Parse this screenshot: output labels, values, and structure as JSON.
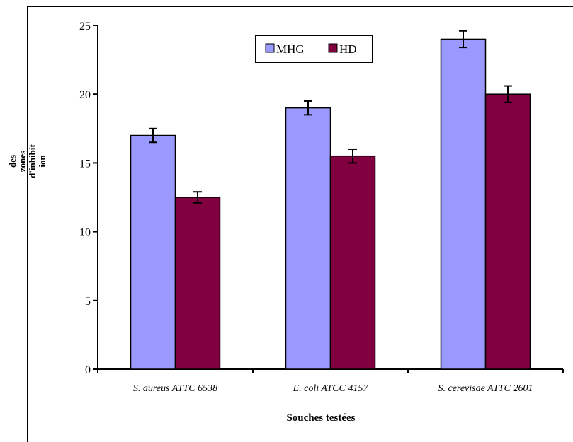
{
  "chart_data": {
    "type": "bar",
    "categories": [
      "S. aureus ATTC 6538",
      "E. coli ATCC 4157",
      "S. cerevisae ATTC 2601"
    ],
    "series": [
      {
        "name": "MHG",
        "color": "#9999ff",
        "values": [
          17,
          19,
          24
        ],
        "errors": [
          0.5,
          0.5,
          0.6
        ]
      },
      {
        "name": "HD",
        "color": "#800040",
        "values": [
          12.5,
          15.5,
          20
        ],
        "errors": [
          0.4,
          0.5,
          0.6
        ]
      }
    ],
    "xlabel": "Souches testées",
    "ylabel_lines": [
      "des",
      "zones",
      "d'inhibit",
      "ion"
    ],
    "ylim": [
      0,
      25
    ],
    "yticks": [
      0,
      5,
      10,
      15,
      20,
      25
    ],
    "legend_position": "top-center",
    "grid": false
  }
}
